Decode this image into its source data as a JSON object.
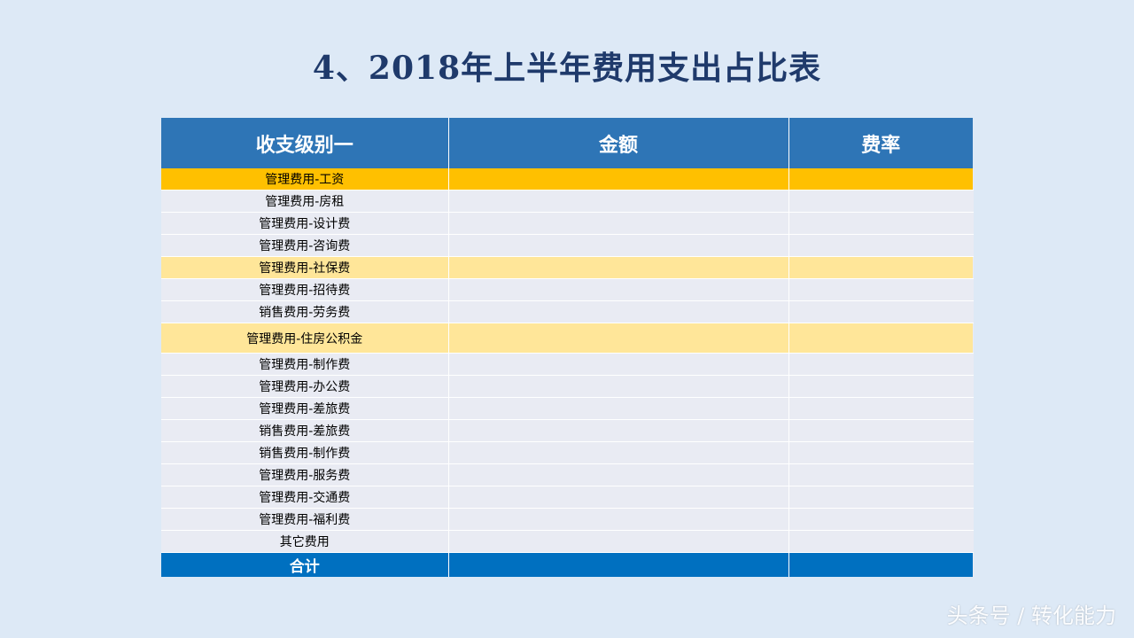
{
  "title": "4、2018年上半年费用支出占比表",
  "table": {
    "headers": [
      "收支级别一",
      "金额",
      "费率"
    ],
    "rows": [
      {
        "category": "管理费用-工资",
        "amount": "",
        "rate": ""
      },
      {
        "category": "管理费用-房租",
        "amount": "",
        "rate": ""
      },
      {
        "category": "管理费用-设计费",
        "amount": "",
        "rate": ""
      },
      {
        "category": "管理费用-咨询费",
        "amount": "",
        "rate": ""
      },
      {
        "category": "管理费用-社保费",
        "amount": "",
        "rate": ""
      },
      {
        "category": "管理费用-招待费",
        "amount": "",
        "rate": ""
      },
      {
        "category": "销售费用-劳务费",
        "amount": "",
        "rate": ""
      },
      {
        "category": "管理费用-住房公积金",
        "amount": "",
        "rate": ""
      },
      {
        "category": "管理费用-制作费",
        "amount": "",
        "rate": ""
      },
      {
        "category": "管理费用-办公费",
        "amount": "",
        "rate": ""
      },
      {
        "category": "管理费用-差旅费",
        "amount": "",
        "rate": ""
      },
      {
        "category": "销售费用-差旅费",
        "amount": "",
        "rate": ""
      },
      {
        "category": "销售费用-制作费",
        "amount": "",
        "rate": ""
      },
      {
        "category": "管理费用-服务费",
        "amount": "",
        "rate": ""
      },
      {
        "category": "管理费用-交通费",
        "amount": "",
        "rate": ""
      },
      {
        "category": "管理费用-福利费",
        "amount": "",
        "rate": ""
      },
      {
        "category": "其它费用",
        "amount": "",
        "rate": ""
      }
    ],
    "total": {
      "label": "合计",
      "amount": "",
      "rate": ""
    }
  },
  "colors": {
    "header": "#2e75b6",
    "highlight_strong": "#ffc000",
    "highlight_light": "#ffe699",
    "total": "#0070c0"
  },
  "watermark": "头条号 / 转化能力"
}
